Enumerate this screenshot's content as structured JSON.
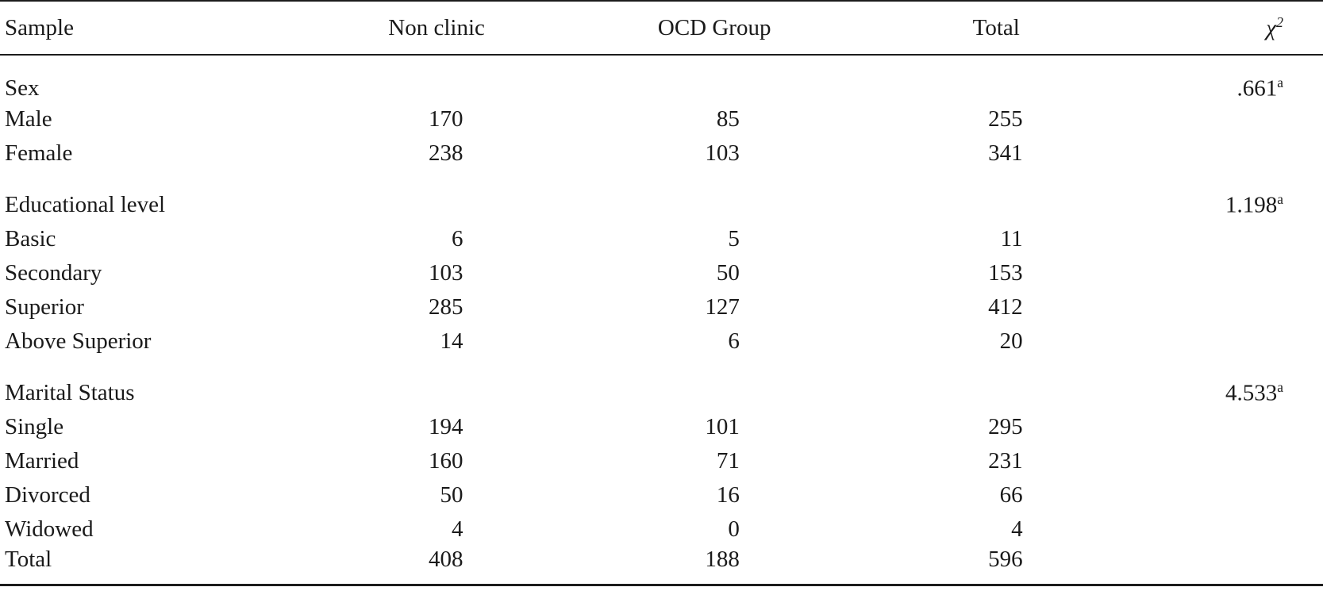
{
  "table": {
    "columns": [
      "Sample",
      "Non clinic",
      "OCD Group",
      "Total"
    ],
    "chi_header": {
      "base": "χ",
      "sup": "2"
    },
    "sections": [
      {
        "title": "Sex",
        "chi": ".661",
        "chi_sup": "a",
        "entries": [
          {
            "label": "Male",
            "values": [
              "170",
              "85",
              "255"
            ]
          },
          {
            "label": "Female",
            "values": [
              "238",
              "103",
              "341"
            ]
          }
        ]
      },
      {
        "title": "Educational level",
        "chi": "1.198",
        "chi_sup": "a",
        "entries": [
          {
            "label": "Basic",
            "values": [
              "6",
              "5",
              "11"
            ]
          },
          {
            "label": "Secondary",
            "values": [
              "103",
              "50",
              "153"
            ]
          },
          {
            "label": "Superior",
            "values": [
              "285",
              "127",
              "412"
            ]
          },
          {
            "label": "Above Superior",
            "values": [
              "14",
              "6",
              "20"
            ]
          }
        ]
      },
      {
        "title": "Marital Status",
        "chi": "4.533",
        "chi_sup": "a",
        "entries": [
          {
            "label": "Single",
            "values": [
              "194",
              "101",
              "295"
            ]
          },
          {
            "label": "Married",
            "values": [
              "160",
              "71",
              "231"
            ]
          },
          {
            "label": "Divorced",
            "values": [
              "50",
              "16",
              "66"
            ]
          },
          {
            "label": "Widowed",
            "values": [
              "4",
              "0",
              "4"
            ]
          },
          {
            "label": "Total",
            "values": [
              "408",
              "188",
              "596"
            ]
          }
        ]
      }
    ]
  }
}
